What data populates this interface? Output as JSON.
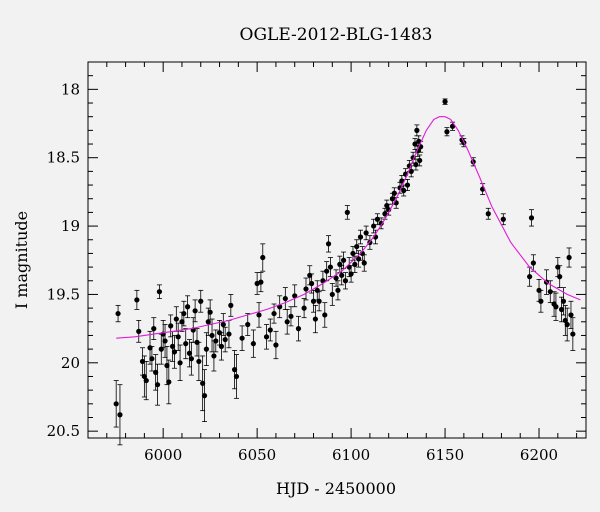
{
  "chart_data": {
    "type": "scatter",
    "title": "OGLE-2012-BLG-1483",
    "xlabel": "HJD - 2450000",
    "ylabel": "I magnitude",
    "xlim": [
      5960,
      6225
    ],
    "ylim": [
      17.8,
      20.55
    ],
    "y_inverted": true,
    "x_ticks": [
      6000,
      6050,
      6100,
      6150,
      6200
    ],
    "y_ticks": [
      18,
      18.5,
      19,
      19.5,
      20,
      20.5
    ],
    "x_tick_labels": [
      "6000",
      "6050",
      "6100",
      "6150",
      "6200"
    ],
    "y_tick_labels": [
      "18",
      "18.5",
      "19",
      "19.5",
      "20",
      "20.5"
    ],
    "grid": false,
    "colors": {
      "points": "#000000",
      "model": "#e01cd8",
      "background": "#f2f2f2"
    },
    "model_curve": {
      "name": "",
      "x": [
        5975,
        5985,
        5995,
        6005,
        6015,
        6025,
        6035,
        6045,
        6055,
        6065,
        6075,
        6085,
        6095,
        6105,
        6112,
        6118,
        6124,
        6130,
        6135,
        6140,
        6144,
        6147,
        6150,
        6153,
        6157,
        6162,
        6168,
        6175,
        6185,
        6195,
        6205,
        6215,
        6222
      ],
      "y": [
        19.82,
        19.81,
        19.79,
        19.77,
        19.75,
        19.72,
        19.69,
        19.65,
        19.61,
        19.56,
        19.5,
        19.42,
        19.33,
        19.2,
        19.08,
        18.95,
        18.8,
        18.62,
        18.45,
        18.3,
        18.22,
        18.2,
        18.2,
        18.22,
        18.3,
        18.44,
        18.63,
        18.86,
        19.12,
        19.3,
        19.42,
        19.5,
        19.54
      ]
    },
    "series": [
      {
        "name": "",
        "points": [
          [
            5976,
            19.64,
            0.06
          ],
          [
            5975,
            20.3,
            0.17
          ],
          [
            5977,
            20.38,
            0.22
          ],
          [
            5986,
            19.54,
            0.07
          ],
          [
            5987,
            19.77,
            0.08
          ],
          [
            5989,
            19.99,
            0.1
          ],
          [
            5990,
            20.1,
            0.15
          ],
          [
            5991,
            20.13,
            0.14
          ],
          [
            5993,
            19.89,
            0.12
          ],
          [
            5994,
            19.97,
            0.09
          ],
          [
            5995,
            19.75,
            0.08
          ],
          [
            5996,
            20.07,
            0.13
          ],
          [
            5997,
            20.16,
            0.15
          ],
          [
            5998,
            19.48,
            0.05
          ],
          [
            5999,
            19.9,
            0.11
          ],
          [
            6000,
            19.79,
            0.1
          ],
          [
            6001,
            19.84,
            0.12
          ],
          [
            6002,
            20.02,
            0.14
          ],
          [
            6003,
            20.14,
            0.16
          ],
          [
            6004,
            19.73,
            0.08
          ],
          [
            6005,
            19.88,
            0.11
          ],
          [
            6006,
            19.92,
            0.12
          ],
          [
            6007,
            19.68,
            0.09
          ],
          [
            6008,
            19.81,
            0.1
          ],
          [
            6009,
            20.0,
            0.13
          ],
          [
            6010,
            19.7,
            0.07
          ],
          [
            6011,
            19.64,
            0.09
          ],
          [
            6012,
            19.86,
            0.11
          ],
          [
            6013,
            19.59,
            0.08
          ],
          [
            6014,
            19.93,
            0.1
          ],
          [
            6015,
            19.97,
            0.12
          ],
          [
            6016,
            19.76,
            0.09
          ],
          [
            6017,
            19.62,
            0.08
          ],
          [
            6018,
            19.85,
            0.1
          ],
          [
            6019,
            19.99,
            0.14
          ],
          [
            6020,
            19.55,
            0.08
          ],
          [
            6021,
            20.15,
            0.2
          ],
          [
            6022,
            20.24,
            0.19
          ],
          [
            6023,
            19.9,
            0.12
          ],
          [
            6024,
            19.7,
            0.1
          ],
          [
            6025,
            19.63,
            0.09
          ],
          [
            6026,
            19.8,
            0.12
          ],
          [
            6027,
            19.95,
            0.11
          ],
          [
            6028,
            19.84,
            0.08
          ],
          [
            6030,
            19.78,
            0.09
          ],
          [
            6031,
            19.88,
            0.1
          ],
          [
            6032,
            19.72,
            0.08
          ],
          [
            6033,
            19.83,
            0.09
          ],
          [
            6035,
            19.79,
            0.1
          ],
          [
            6036,
            19.58,
            0.08
          ],
          [
            6038,
            20.05,
            0.14
          ],
          [
            6039,
            20.1,
            0.16
          ],
          [
            6042,
            19.82,
            0.09
          ],
          [
            6045,
            19.72,
            0.08
          ],
          [
            6048,
            19.86,
            0.1
          ],
          [
            6050,
            19.42,
            0.08
          ],
          [
            6051,
            19.65,
            0.09
          ],
          [
            6052,
            19.41,
            0.07
          ],
          [
            6053,
            19.23,
            0.1
          ],
          [
            6055,
            19.81,
            0.09
          ],
          [
            6057,
            19.76,
            0.08
          ],
          [
            6059,
            19.64,
            0.07
          ],
          [
            6060,
            19.87,
            0.1
          ],
          [
            6062,
            19.59,
            0.08
          ],
          [
            6065,
            19.53,
            0.08
          ],
          [
            6066,
            19.7,
            0.09
          ],
          [
            6068,
            19.66,
            0.07
          ],
          [
            6070,
            19.51,
            0.08
          ],
          [
            6072,
            19.75,
            0.09
          ],
          [
            6075,
            19.6,
            0.07
          ],
          [
            6076,
            19.46,
            0.08
          ],
          [
            6078,
            19.36,
            0.07
          ],
          [
            6079,
            19.42,
            0.07
          ],
          [
            6080,
            19.55,
            0.08
          ],
          [
            6081,
            19.68,
            0.1
          ],
          [
            6082,
            19.47,
            0.07
          ],
          [
            6083,
            19.55,
            0.07
          ],
          [
            6085,
            19.4,
            0.07
          ],
          [
            6086,
            19.65,
            0.09
          ],
          [
            6087,
            19.33,
            0.07
          ],
          [
            6088,
            19.13,
            0.06
          ],
          [
            6089,
            19.3,
            0.07
          ],
          [
            6090,
            19.5,
            0.08
          ],
          [
            6092,
            19.38,
            0.06
          ],
          [
            6093,
            19.47,
            0.07
          ],
          [
            6094,
            19.28,
            0.06
          ],
          [
            6095,
            19.36,
            0.07
          ],
          [
            6096,
            19.25,
            0.06
          ],
          [
            6097,
            19.4,
            0.06
          ],
          [
            6098,
            18.9,
            0.05
          ],
          [
            6099,
            19.3,
            0.07
          ],
          [
            6100,
            19.35,
            0.06
          ],
          [
            6101,
            19.2,
            0.05
          ],
          [
            6102,
            19.28,
            0.06
          ],
          [
            6103,
            19.15,
            0.05
          ],
          [
            6104,
            19.24,
            0.06
          ],
          [
            6105,
            19.08,
            0.05
          ],
          [
            6106,
            19.2,
            0.05
          ],
          [
            6107,
            19.27,
            0.06
          ],
          [
            6108,
            19.05,
            0.05
          ],
          [
            6110,
            19.12,
            0.05
          ],
          [
            6112,
            19.0,
            0.05
          ],
          [
            6113,
            19.08,
            0.05
          ],
          [
            6114,
            18.95,
            0.04
          ],
          [
            6116,
            18.98,
            0.04
          ],
          [
            6118,
            18.91,
            0.04
          ],
          [
            6119,
            18.85,
            0.04
          ],
          [
            6120,
            18.88,
            0.04
          ],
          [
            6122,
            18.8,
            0.04
          ],
          [
            6123,
            18.76,
            0.04
          ],
          [
            6124,
            18.83,
            0.04
          ],
          [
            6126,
            18.72,
            0.04
          ],
          [
            6127,
            18.67,
            0.04
          ],
          [
            6128,
            18.74,
            0.04
          ],
          [
            6129,
            18.62,
            0.04
          ],
          [
            6130,
            18.7,
            0.04
          ],
          [
            6131,
            18.56,
            0.04
          ],
          [
            6132,
            18.6,
            0.04
          ],
          [
            6133,
            18.5,
            0.04
          ],
          [
            6134,
            18.4,
            0.04
          ],
          [
            6134.5,
            18.55,
            0.04
          ],
          [
            6135,
            18.3,
            0.04
          ],
          [
            6135.5,
            18.45,
            0.04
          ],
          [
            6136,
            18.38,
            0.04
          ],
          [
            6136.5,
            18.52,
            0.04
          ],
          [
            6137,
            18.42,
            0.04
          ],
          [
            6150,
            18.09,
            0.02
          ],
          [
            6151,
            18.31,
            0.03
          ],
          [
            6154,
            18.27,
            0.03
          ],
          [
            6159,
            18.37,
            0.03
          ],
          [
            6160,
            18.39,
            0.03
          ],
          [
            6165,
            18.53,
            0.03
          ],
          [
            6170,
            18.73,
            0.04
          ],
          [
            6173,
            18.91,
            0.04
          ],
          [
            6181,
            18.95,
            0.04
          ],
          [
            6195,
            19.37,
            0.07
          ],
          [
            6196,
            18.94,
            0.06
          ],
          [
            6197,
            19.27,
            0.06
          ],
          [
            6200,
            19.47,
            0.08
          ],
          [
            6201,
            19.55,
            0.08
          ],
          [
            6204,
            19.41,
            0.09
          ],
          [
            6206,
            19.48,
            0.08
          ],
          [
            6208,
            19.57,
            0.09
          ],
          [
            6210,
            19.3,
            0.07
          ],
          [
            6211,
            19.37,
            0.08
          ],
          [
            6212,
            19.61,
            0.09
          ],
          [
            6213,
            19.55,
            0.1
          ],
          [
            6214,
            19.69,
            0.11
          ],
          [
            6216,
            19.23,
            0.07
          ],
          [
            6217,
            19.65,
            0.1
          ],
          [
            6218,
            19.79,
            0.12
          ],
          [
            6215,
            19.72,
            0.12
          ],
          [
            6209,
            19.59,
            0.1
          ]
        ]
      }
    ]
  }
}
